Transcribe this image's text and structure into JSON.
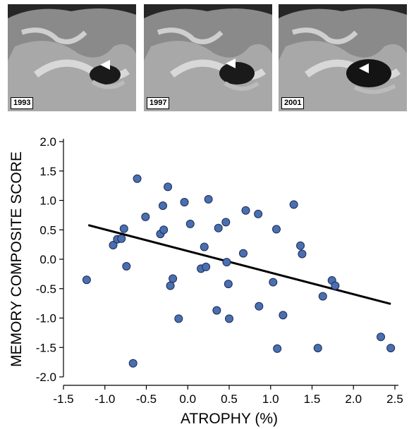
{
  "panels": [
    {
      "year": "1993",
      "arrow_icon": "white-triangle-marker"
    },
    {
      "year": "1997",
      "arrow_icon": "white-triangle-marker"
    },
    {
      "year": "2001",
      "arrow_icon": "white-triangle-marker"
    }
  ],
  "chart_data": {
    "type": "scatter",
    "xlabel": "ATROPHY (%)",
    "ylabel": "MEMORY COMPOSITE SCORE",
    "xlim": [
      -1.5,
      2.5
    ],
    "ylim": [
      -2.0,
      2.0
    ],
    "xticks": [
      "-1.5",
      "-1.0",
      "-0.5",
      "0.0",
      "0.5",
      "1.0",
      "1.5",
      "2.0",
      "2.5"
    ],
    "yticks": [
      "2.0",
      "1.5",
      "1.0",
      "0.5",
      "0.0",
      "-0.5",
      "-1.0",
      "-1.5",
      "-2.0"
    ],
    "grid": false,
    "marker_color": "#4a6fb0",
    "fit_line": {
      "x": [
        -1.2,
        2.45
      ],
      "y": [
        0.58,
        -0.76
      ]
    },
    "points": [
      {
        "x": -1.22,
        "y": -0.35
      },
      {
        "x": -0.9,
        "y": 0.24
      },
      {
        "x": -0.85,
        "y": 0.34
      },
      {
        "x": -0.8,
        "y": 0.35
      },
      {
        "x": -0.77,
        "y": 0.52
      },
      {
        "x": -0.74,
        "y": -0.12
      },
      {
        "x": -0.66,
        "y": -1.77
      },
      {
        "x": -0.61,
        "y": 1.37
      },
      {
        "x": -0.51,
        "y": 0.72
      },
      {
        "x": -0.33,
        "y": 0.43
      },
      {
        "x": -0.3,
        "y": 0.91
      },
      {
        "x": -0.29,
        "y": 0.5
      },
      {
        "x": -0.24,
        "y": 1.23
      },
      {
        "x": -0.21,
        "y": -0.45
      },
      {
        "x": -0.18,
        "y": -0.33
      },
      {
        "x": -0.11,
        "y": -1.01
      },
      {
        "x": -0.04,
        "y": 0.97
      },
      {
        "x": 0.03,
        "y": 0.6
      },
      {
        "x": 0.16,
        "y": -0.16
      },
      {
        "x": 0.2,
        "y": 0.21
      },
      {
        "x": 0.22,
        "y": -0.13
      },
      {
        "x": 0.25,
        "y": 1.02
      },
      {
        "x": 0.35,
        "y": -0.87
      },
      {
        "x": 0.37,
        "y": 0.53
      },
      {
        "x": 0.46,
        "y": 0.63
      },
      {
        "x": 0.47,
        "y": -0.05
      },
      {
        "x": 0.49,
        "y": -0.42
      },
      {
        "x": 0.5,
        "y": -1.01
      },
      {
        "x": 0.67,
        "y": 0.1
      },
      {
        "x": 0.7,
        "y": 0.83
      },
      {
        "x": 0.85,
        "y": 0.77
      },
      {
        "x": 0.86,
        "y": -0.8
      },
      {
        "x": 1.03,
        "y": -0.39
      },
      {
        "x": 1.07,
        "y": 0.51
      },
      {
        "x": 1.08,
        "y": -1.52
      },
      {
        "x": 1.15,
        "y": -0.95
      },
      {
        "x": 1.28,
        "y": 0.93
      },
      {
        "x": 1.36,
        "y": 0.23
      },
      {
        "x": 1.38,
        "y": 0.09
      },
      {
        "x": 1.57,
        "y": -1.51
      },
      {
        "x": 1.63,
        "y": -0.63
      },
      {
        "x": 1.74,
        "y": -0.36
      },
      {
        "x": 1.78,
        "y": -0.45
      },
      {
        "x": 2.33,
        "y": -1.32
      },
      {
        "x": 2.45,
        "y": -1.51
      }
    ]
  }
}
